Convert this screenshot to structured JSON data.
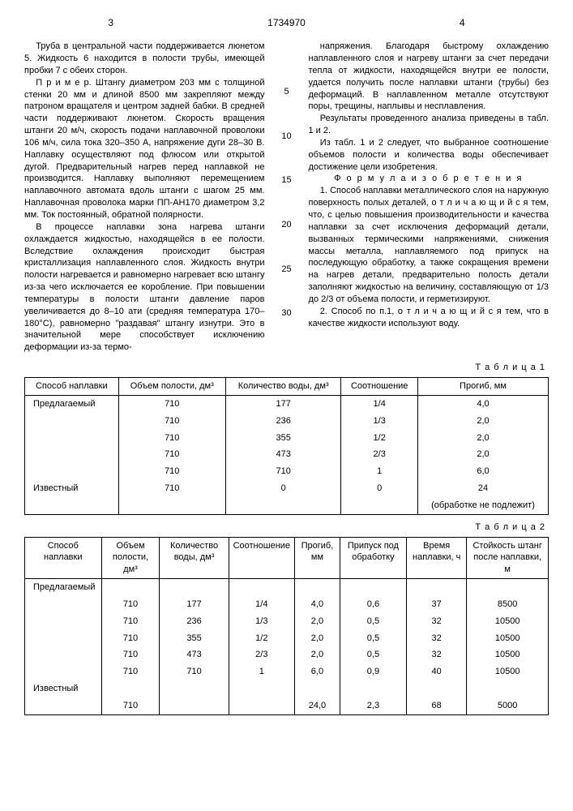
{
  "header": {
    "page_left": "3",
    "patent_number": "1734970",
    "page_right": "4"
  },
  "line_numbers": [
    "5",
    "10",
    "15",
    "20",
    "25",
    "30"
  ],
  "col_left": {
    "p1": "Труба в центральной части поддерживается люнетом 5. Жидкость 6 находится в полости трубы, имеющей пробки 7 с обеих сторон.",
    "p2": "П р и м е р. Штангу диаметром 203 мм с толщиной стенки 20 мм и длиной 8500 мм закрепляют между патроном вращателя и центром задней бабки. В средней части поддерживают люнетом. Скорость вращения штанги 20 м/ч, скорость подачи наплавочной проволоки 106 м/ч, сила тока 320–350 А, напряжение дуги 28–30 В. Наплавку осуществляют под флюсом или открытой дугой. Предварительный нагрев перед наплавкой не производится. Наплавку выполняют перемещением наплавочного автомата вдоль штанги с шагом 25 мм. Наплавочная проволока марки ПП-АН170 диаметром 3,2 мм. Ток постоянный, обратной полярности.",
    "p3": "В процессе наплавки зона нагрева штанги охлаждается жидкостью, находящейся в ее полости. Вследствие охлаждения происходит быстрая кристаллизация наплавленного слоя. Жидкость внутри полости нагревается и равномерно нагревает всю штангу из-за чего исключается ее коробление. При повышении температуры в полости штанги давление паров увеличивается до 8–10 ати (средняя температура 170–180°С), равномерно \"раздавая\" штангу изнутри. Это в значительной мере способствует исключению деформации из-за термо-"
  },
  "col_right": {
    "p1": "напряжения. Благодаря быстрому охлаждению наплавленного слоя и нагреву штанги за счет передачи тепла от жидкости, находящейся внутри ее полости, удается получить после наплавки штанги (трубы) без деформаций. В наплавленном металле отсутствуют поры, трещины, наплывы и несплавления.",
    "p2": "Результаты проведенного анализа приведены в табл. 1 и 2.",
    "p3": "Из табл. 1 и 2 следует, что выбранное соотношение объемов полости и количества воды обеспечивает достижение цели изобретения.",
    "formula_hdr": "Ф о р м у л а   и з о б р е т е н и я",
    "p4": "1. Способ наплавки металлического слоя на наружную поверхность полых деталей, о т л и ч а ю щ и й с я  тем, что, с целью повышения производительности и качества наплавки за счет исключения деформаций детали, вызванных термическими напряжениями, снижения массы металла, наплавляемого под припуск на последующую обработку, а также сокращения времени на нагрев детали, предварительно полость детали заполняют жидкостью на величину, составляющую от 1/3 до 2/3 от объема полости, и герметизируют.",
    "p5": "2. Способ по п.1, о т л и ч а ю щ и й с я тем, что в качестве жидкости используют воду."
  },
  "table1": {
    "caption": "Т а б л и ц а 1",
    "headers": [
      "Способ наплавки",
      "Объем полости, дм³",
      "Количество воды, дм³",
      "Соотношение",
      "Прогиб, мм"
    ],
    "rows": [
      [
        "Предлагаемый",
        "710",
        "177",
        "1/4",
        "4,0"
      ],
      [
        "",
        "710",
        "236",
        "1/3",
        "2,0"
      ],
      [
        "",
        "710",
        "355",
        "1/2",
        "2,0"
      ],
      [
        "",
        "710",
        "473",
        "2/3",
        "2,0"
      ],
      [
        "",
        "710",
        "710",
        "1",
        "6,0"
      ],
      [
        "Известный",
        "710",
        "0",
        "0",
        "24"
      ],
      [
        "",
        "",
        "",
        "",
        "(обработке не подлежит)"
      ]
    ]
  },
  "table2": {
    "caption": "Т а б л и ц а 2",
    "headers": [
      "Способ наплавки",
      "Объем полости, дм³",
      "Количество воды, дм³",
      "Соотношение",
      "Прогиб, мм",
      "Припуск под обработку",
      "Время наплавки, ч",
      "Стойкость штанг после наплавки, м"
    ],
    "rows": [
      [
        "Предлагаемый",
        "",
        "",
        "",
        "",
        "",
        "",
        ""
      ],
      [
        "",
        "710",
        "177",
        "1/4",
        "4,0",
        "0,6",
        "37",
        "8500"
      ],
      [
        "",
        "710",
        "236",
        "1/3",
        "2,0",
        "0,5",
        "32",
        "10500"
      ],
      [
        "",
        "710",
        "355",
        "1/2",
        "2,0",
        "0,5",
        "32",
        "10500"
      ],
      [
        "",
        "710",
        "473",
        "2/3",
        "2,0",
        "0,5",
        "32",
        "10500"
      ],
      [
        "",
        "710",
        "710",
        "1",
        "6,0",
        "0,9",
        "40",
        "10500"
      ],
      [
        "Известный",
        "",
        "",
        "",
        "",
        "",
        "",
        ""
      ],
      [
        "",
        "710",
        "",
        "",
        "24,0",
        "2,3",
        "68",
        "5000"
      ]
    ]
  }
}
